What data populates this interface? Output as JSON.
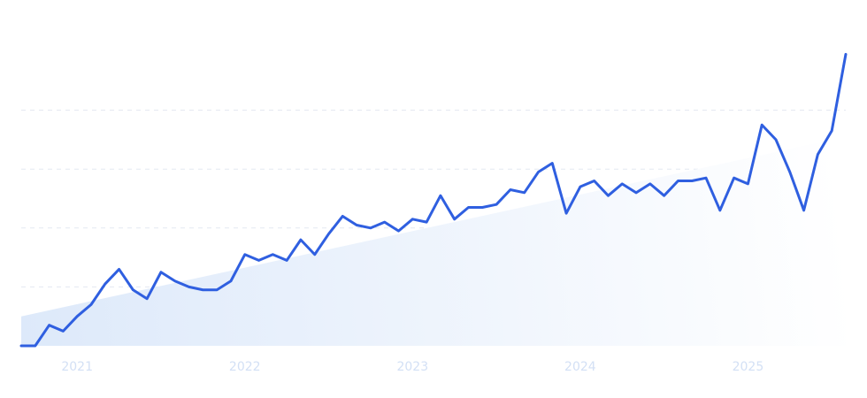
{
  "chart_data": {
    "type": "line",
    "x_axis": {
      "tick_labels": [
        "2021",
        "2022",
        "2023",
        "2024",
        "2025"
      ]
    },
    "grid": true,
    "legend": "none",
    "y_axis": {
      "labels_shown": false,
      "ylim": [
        0,
        100
      ]
    },
    "series": [
      {
        "style": "line",
        "color": "#2f5fe0",
        "x_start": "2020-09",
        "interval": "month",
        "values": [
          0,
          0,
          7,
          5,
          10,
          14,
          21,
          26,
          19,
          16,
          25,
          22,
          20,
          19,
          19,
          22,
          31,
          29,
          31,
          29,
          36,
          31,
          38,
          44,
          41,
          40,
          42,
          39,
          43,
          42,
          51,
          43,
          47,
          47,
          48,
          53,
          52,
          59,
          62,
          45,
          54,
          56,
          51,
          55,
          52,
          55,
          51,
          56,
          56,
          57,
          46,
          57,
          55,
          75,
          70,
          59,
          46,
          65,
          73,
          99
        ]
      },
      {
        "style": "trend-area",
        "color": "#e3edfb",
        "values": [
          10,
          71
        ]
      }
    ]
  }
}
